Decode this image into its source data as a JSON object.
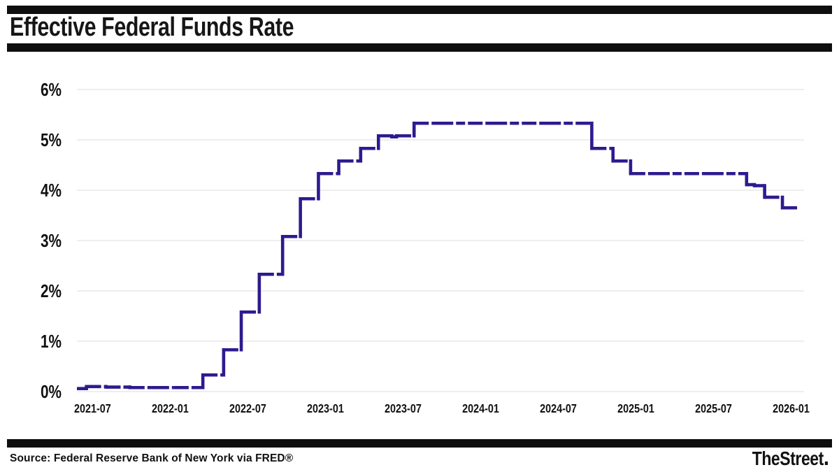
{
  "header": {
    "title": "Effective Federal Funds Rate"
  },
  "footer": {
    "source": "Source: Federal Reserve Bank of New York via FRED®",
    "brand": "TheStreet"
  },
  "chart_data": {
    "type": "line",
    "subtype": "step",
    "title": "Effective Federal Funds Rate",
    "legend": "none",
    "grid": "horizontal-only",
    "line_color": "#2d1b8f",
    "grid_color": "#e3e3e3",
    "text_color": "#111111",
    "xlabel": "",
    "ylabel": "",
    "x_axis": {
      "domain": [
        "2021-05-25",
        "2026-02-01"
      ],
      "ticks": [
        {
          "date": "2021-07-01",
          "label": "2021-07"
        },
        {
          "date": "2022-01-01",
          "label": "2022-01"
        },
        {
          "date": "2022-07-01",
          "label": "2022-07"
        },
        {
          "date": "2023-01-01",
          "label": "2023-01"
        },
        {
          "date": "2023-07-01",
          "label": "2023-07"
        },
        {
          "date": "2024-01-01",
          "label": "2024-01"
        },
        {
          "date": "2024-07-01",
          "label": "2024-07"
        },
        {
          "date": "2025-01-01",
          "label": "2025-01"
        },
        {
          "date": "2025-07-01",
          "label": "2025-07"
        },
        {
          "date": "2026-01-01",
          "label": "2026-01"
        }
      ]
    },
    "y_axis": {
      "ylim": [
        0,
        6
      ],
      "tick_step": 1,
      "tick_labels": [
        "0%",
        "1%",
        "2%",
        "3%",
        "4%",
        "5%",
        "6%"
      ]
    },
    "series": [
      {
        "name": "Effective Federal Funds Rate (%)",
        "steps": [
          {
            "date": "2021-05-25",
            "value": 0.06
          },
          {
            "date": "2021-06-17",
            "value": 0.1
          },
          {
            "date": "2021-08-02",
            "value": 0.09
          },
          {
            "date": "2021-09-28",
            "value": 0.08
          },
          {
            "date": "2022-01-10",
            "value": 0.08
          },
          {
            "date": "2022-03-17",
            "value": 0.33
          },
          {
            "date": "2022-05-05",
            "value": 0.83
          },
          {
            "date": "2022-06-16",
            "value": 1.58
          },
          {
            "date": "2022-07-28",
            "value": 2.33
          },
          {
            "date": "2022-09-22",
            "value": 3.08
          },
          {
            "date": "2022-11-03",
            "value": 3.83
          },
          {
            "date": "2022-12-15",
            "value": 4.33
          },
          {
            "date": "2023-02-02",
            "value": 4.58
          },
          {
            "date": "2023-03-23",
            "value": 4.83
          },
          {
            "date": "2023-05-04",
            "value": 5.08
          },
          {
            "date": "2023-06-05",
            "value": 5.06
          },
          {
            "date": "2023-06-16",
            "value": 5.08
          },
          {
            "date": "2023-07-27",
            "value": 5.33
          },
          {
            "date": "2024-09-19",
            "value": 4.83
          },
          {
            "date": "2024-11-08",
            "value": 4.58
          },
          {
            "date": "2024-12-19",
            "value": 4.33
          },
          {
            "date": "2025-09-18",
            "value": 4.11
          },
          {
            "date": "2025-10-06",
            "value": 4.09
          },
          {
            "date": "2025-10-30",
            "value": 3.86
          },
          {
            "date": "2025-12-11",
            "value": 3.65
          },
          {
            "date": "2026-01-16",
            "value": 3.65
          }
        ]
      }
    ]
  }
}
